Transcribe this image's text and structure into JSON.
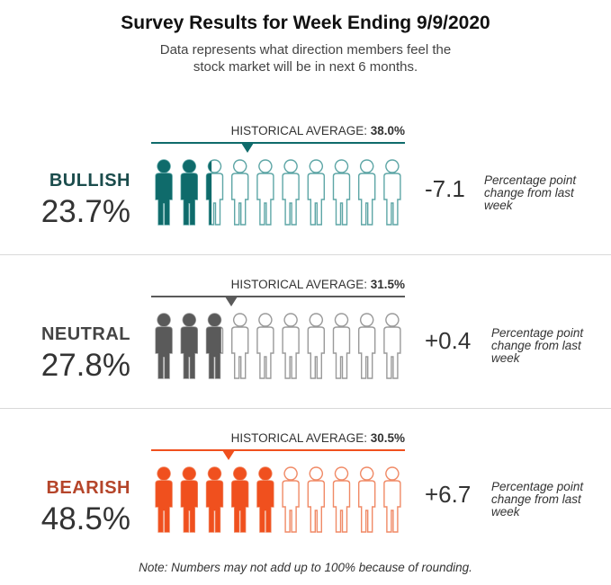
{
  "title": "Survey Results for Week Ending 9/9/2020",
  "subtitle_line1": "Data represents what direction members feel the",
  "subtitle_line2": "stock market will be in next 6 months.",
  "footnote": "Note: Numbers may not add up to 100% because of rounding.",
  "hist_label": "HISTORICAL AVERAGE:",
  "change_note": "Percentage point change from last week",
  "chart_data": {
    "type": "pictograph",
    "icons_per_row": 10,
    "categories": [
      {
        "name": "BULLISH",
        "value_label": "23.7%",
        "value": 23.7,
        "historical_average_label": "38.0%",
        "historical_average": 38.0,
        "change_label": "-7.1",
        "change": -7.1,
        "color": "#0f6b6b",
        "outline_color": "#5ea6a6"
      },
      {
        "name": "NEUTRAL",
        "value_label": "27.8%",
        "value": 27.8,
        "historical_average_label": "31.5%",
        "historical_average": 31.5,
        "change_label": "+0.4",
        "change": 0.4,
        "color": "#5a5a5a",
        "outline_color": "#9a9a9a"
      },
      {
        "name": "BEARISH",
        "value_label": "48.5%",
        "value": 48.5,
        "historical_average_label": "30.5%",
        "historical_average": 30.5,
        "change_label": "+6.7",
        "change": 6.7,
        "color": "#f0501e",
        "outline_color": "#f08a66"
      }
    ]
  },
  "colors": {
    "bullish_label": "#1b4c4c",
    "neutral_label": "#444444",
    "bearish_label": "#b5452a"
  }
}
